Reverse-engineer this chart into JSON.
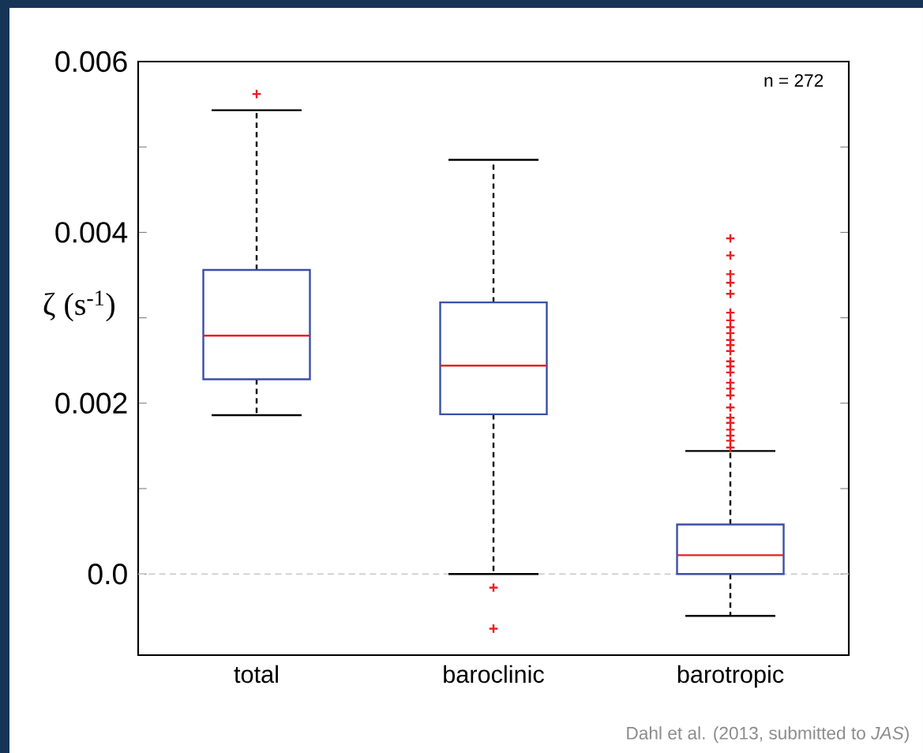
{
  "chart_data": {
    "type": "box",
    "ylabel": "ζ (s$^{-1}$)",
    "categories": [
      "total",
      "baroclinic",
      "barotropic"
    ],
    "series": [
      {
        "color": "#3a4fa8",
        "boxes": [
          {
            "low": 0.00186,
            "q1": 0.00228,
            "median": 0.00279,
            "q3": 0.00356,
            "high": 0.00543,
            "outliers": [
              0.00562
            ]
          },
          {
            "low": 0.0,
            "q1": 0.00187,
            "median": 0.00244,
            "q3": 0.00318,
            "high": 0.00485,
            "outliers": [
              -0.00016,
              -0.00064
            ]
          },
          {
            "low": -0.00049,
            "q1": 0.0,
            "median": 0.00022,
            "q3": 0.00058,
            "high": 0.00144,
            "outliers": [
              0.00393,
              0.00373,
              0.00351,
              0.00341,
              0.00328,
              0.00306,
              0.00297,
              0.00289,
              0.00282,
              0.00274,
              0.00268,
              0.00261,
              0.00249,
              0.00243,
              0.00236,
              0.00224,
              0.00217,
              0.00209,
              0.00195,
              0.00183,
              0.00177,
              0.00169,
              0.00162,
              0.00156,
              0.00148
            ]
          }
        ]
      }
    ],
    "ylim": [
      -0.00095,
      0.006
    ],
    "yticks": [
      {
        "value": 0,
        "label": "0.0"
      },
      {
        "value": 0.001,
        "label": null
      },
      0.002,
      {
        "value": 0.003,
        "label": null
      },
      0.004,
      {
        "value": 0.005,
        "label": null
      },
      0.006
    ],
    "ref_lines": [
      {
        "axis": "y",
        "value": 0,
        "color": "#c8c8c8",
        "line_style": "dashed"
      }
    ],
    "annotations": [
      "n = 272",
      "Dahl et al. (2013, submitted to *JAS*)"
    ]
  }
}
